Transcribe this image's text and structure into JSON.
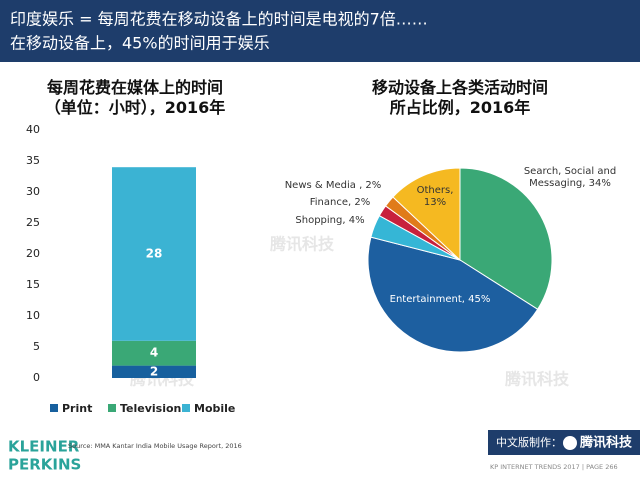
{
  "header": {
    "line1": "印度娱乐 = 每周花费在移动设备上的时间是电视的7倍……",
    "line2": "在移动设备上，45%的时间用于娱乐"
  },
  "chart_data": [
    {
      "type": "bar",
      "stacked": true,
      "title": "每周花费在媒体上的时间\n（单位：小时），2016年",
      "categories": [
        null
      ],
      "series": [
        {
          "name": "Print",
          "color": "#17609e",
          "values": [
            2
          ]
        },
        {
          "name": "Television",
          "color": "#3aa876",
          "values": [
            4
          ]
        },
        {
          "name": "Mobile",
          "color": "#3bb3d3",
          "values": [
            28
          ]
        }
      ],
      "ylim": [
        0,
        40
      ],
      "yticks": [
        0,
        5,
        10,
        15,
        20,
        25,
        30,
        35,
        40
      ],
      "grid": false,
      "legend": "bottom"
    },
    {
      "type": "pie",
      "title": "移动设备上各类活动时间\n所占比例，2016年",
      "categories": [
        "Search, Social and Messaging",
        "Entertainment",
        "Shopping",
        "Finance",
        "News & Media",
        "Others"
      ],
      "values": [
        34,
        45,
        4,
        2,
        2,
        13
      ],
      "value_labels": [
        "Search, Social and Messaging, 34%",
        "Entertainment, 45%",
        "Shopping, 4%",
        "Finance, 2%",
        "News & Media , 2%",
        "Others, 13%"
      ],
      "colors": [
        "#3aa876",
        "#1d5fa0",
        "#35b6d6",
        "#c8203d",
        "#e07b1a",
        "#f5b921"
      ]
    }
  ],
  "footer": {
    "logo_line1": "KLEINER",
    "logo_line2": "PERKINS",
    "source": "Source: MMA Kantar India Mobile Usage Report, 2016",
    "credit": "中文版制作：",
    "brand": "腾讯科技",
    "page": "KP INTERNET TRENDS 2017  |  PAGE 266",
    "watermark": "腾讯科技"
  }
}
